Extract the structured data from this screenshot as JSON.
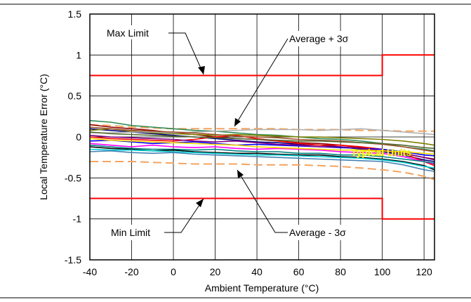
{
  "chart_data": {
    "type": "line",
    "title": "",
    "xlabel": "Ambient Temperature (°C)",
    "ylabel": "Local Temperature Error (°C)",
    "xlim": [
      -40,
      125
    ],
    "ylim": [
      -1.5,
      1.5
    ],
    "x_ticks": [
      {
        "value": -40,
        "label": "-40"
      },
      {
        "value": -20,
        "label": "-20"
      },
      {
        "value": 0,
        "label": "0"
      },
      {
        "value": 20,
        "label": "20"
      },
      {
        "value": 40,
        "label": "40"
      },
      {
        "value": 60,
        "label": "60"
      },
      {
        "value": 80,
        "label": "80"
      },
      {
        "value": 100,
        "label": "100"
      },
      {
        "value": 120,
        "label": "120"
      }
    ],
    "y_ticks": [
      {
        "value": 1.5,
        "label": "1.5"
      },
      {
        "value": 1,
        "label": "1"
      },
      {
        "value": 0.5,
        "label": "0.5"
      },
      {
        "value": 0,
        "label": "0"
      },
      {
        "value": -0.5,
        "label": "-0.5"
      },
      {
        "value": -1,
        "label": "-1"
      },
      {
        "value": -1.5,
        "label": "-1.5"
      }
    ],
    "grid": true,
    "limit_lines": [
      {
        "name": "Max Limit",
        "color": "#ff0000",
        "x": [
          -40,
          100,
          100,
          125
        ],
        "y": [
          0.75,
          0.75,
          1.0,
          1.0
        ]
      },
      {
        "name": "Min Limit",
        "color": "#ff0000",
        "x": [
          -40,
          100,
          100,
          125
        ],
        "y": [
          -0.75,
          -0.75,
          -1.0,
          -1.0
        ]
      }
    ],
    "bound_lines": [
      {
        "name": "Average + 3σ",
        "color": "#f4a460",
        "dashed": true,
        "x": [
          -40,
          -30,
          -20,
          -10,
          0,
          10,
          20,
          30,
          40,
          50,
          60,
          70,
          80,
          90,
          100,
          110,
          120,
          125
        ],
        "y": [
          0.15,
          0.14,
          0.12,
          0.11,
          0.1,
          0.1,
          0.1,
          0.1,
          0.1,
          0.1,
          0.09,
          0.09,
          0.09,
          0.08,
          0.08,
          0.07,
          0.07,
          0.07
        ]
      },
      {
        "name": "Average - 3σ",
        "color": "#f4a460",
        "dashed": true,
        "x": [
          -40,
          -30,
          -20,
          -10,
          0,
          10,
          20,
          30,
          40,
          50,
          60,
          70,
          80,
          90,
          100,
          110,
          120,
          125
        ],
        "y": [
          -0.3,
          -0.3,
          -0.3,
          -0.31,
          -0.32,
          -0.33,
          -0.33,
          -0.33,
          -0.34,
          -0.34,
          -0.34,
          -0.35,
          -0.36,
          -0.38,
          -0.4,
          -0.43,
          -0.48,
          -0.52
        ]
      }
    ],
    "series_x": [
      -40,
      -30,
      -20,
      -10,
      0,
      10,
      20,
      30,
      40,
      50,
      60,
      70,
      80,
      90,
      100,
      110,
      120,
      125
    ],
    "series": [
      {
        "color": "#2e8b57",
        "values": [
          0.2,
          0.18,
          0.14,
          0.12,
          0.1,
          0.08,
          0.07,
          0.05,
          0.03,
          0.02,
          0.0,
          -0.02,
          -0.03,
          -0.05,
          -0.08,
          -0.12,
          -0.15,
          -0.17
        ]
      },
      {
        "color": "#8b0000",
        "values": [
          0.15,
          0.12,
          0.1,
          0.08,
          0.05,
          0.03,
          0.0,
          -0.02,
          -0.03,
          -0.05,
          -0.07,
          -0.08,
          -0.1,
          -0.13,
          -0.15,
          -0.2,
          -0.25,
          -0.27
        ]
      },
      {
        "color": "#000080",
        "values": [
          0.1,
          0.08,
          0.06,
          0.04,
          0.02,
          0.0,
          -0.02,
          -0.04,
          -0.06,
          -0.07,
          -0.09,
          -0.1,
          -0.12,
          -0.15,
          -0.18,
          -0.22,
          -0.28,
          -0.3
        ]
      },
      {
        "color": "#808000",
        "values": [
          0.08,
          0.1,
          0.07,
          0.05,
          0.04,
          0.03,
          0.02,
          0.03,
          0.02,
          0.01,
          0.0,
          0.0,
          -0.01,
          -0.02,
          -0.03,
          -0.05,
          -0.08,
          -0.1
        ]
      },
      {
        "color": "#b0b0b0",
        "values": [
          0.05,
          0.05,
          0.06,
          0.06,
          0.05,
          0.06,
          0.07,
          0.08,
          0.09,
          0.09,
          0.09,
          0.08,
          0.09,
          0.1,
          0.08,
          0.06,
          0.04,
          0.03
        ]
      },
      {
        "color": "#ff0000",
        "values": [
          0.0,
          -0.02,
          -0.03,
          -0.04,
          -0.05,
          -0.03,
          0.0,
          0.02,
          -0.02,
          -0.05,
          -0.08,
          -0.1,
          -0.1,
          -0.12,
          -0.15,
          -0.2,
          -0.3,
          -0.35
        ]
      },
      {
        "color": "#0000ff",
        "values": [
          -0.05,
          -0.04,
          -0.06,
          -0.08,
          -0.07,
          -0.06,
          -0.08,
          -0.1,
          -0.09,
          -0.1,
          -0.11,
          -0.12,
          -0.13,
          -0.14,
          -0.15,
          -0.18,
          -0.22,
          -0.23
        ]
      },
      {
        "color": "#ff00ff",
        "values": [
          -0.08,
          -0.1,
          -0.12,
          -0.1,
          -0.12,
          -0.13,
          -0.12,
          -0.14,
          -0.15,
          -0.14,
          -0.15,
          -0.16,
          -0.18,
          -0.19,
          -0.2,
          -0.24,
          -0.3,
          -0.33
        ]
      },
      {
        "color": "#008080",
        "values": [
          -0.1,
          -0.12,
          -0.14,
          -0.15,
          -0.15,
          -0.16,
          -0.15,
          -0.17,
          -0.18,
          -0.18,
          -0.2,
          -0.2,
          -0.22,
          -0.22,
          -0.24,
          -0.27,
          -0.3,
          -0.32
        ]
      },
      {
        "color": "#800080",
        "values": [
          0.02,
          0.0,
          -0.01,
          -0.02,
          -0.03,
          -0.05,
          -0.06,
          -0.05,
          -0.07,
          -0.09,
          -0.1,
          -0.12,
          -0.12,
          -0.14,
          -0.17,
          -0.2,
          -0.25,
          -0.28
        ]
      },
      {
        "color": "#000000",
        "values": [
          -0.12,
          -0.14,
          -0.15,
          -0.17,
          -0.16,
          -0.18,
          -0.19,
          -0.2,
          -0.2,
          -0.21,
          -0.22,
          -0.22,
          -0.24,
          -0.25,
          -0.27,
          -0.3,
          -0.35,
          -0.4
        ]
      },
      {
        "color": "#a0522d",
        "values": [
          0.12,
          0.1,
          0.08,
          0.07,
          0.06,
          0.05,
          0.03,
          0.01,
          0.0,
          -0.01,
          -0.03,
          -0.04,
          -0.05,
          -0.07,
          -0.09,
          -0.12,
          -0.16,
          -0.18
        ]
      },
      {
        "color": "#ffd700",
        "values": [
          -0.02,
          -0.04,
          -0.05,
          -0.06,
          -0.07,
          -0.08,
          -0.09,
          -0.1,
          -0.12,
          -0.13,
          -0.14,
          -0.15,
          -0.16,
          -0.16,
          -0.17,
          -0.18,
          -0.2,
          -0.21
        ]
      },
      {
        "color": "#00ced1",
        "values": [
          -0.15,
          -0.16,
          -0.16,
          -0.17,
          -0.18,
          -0.19,
          -0.2,
          -0.21,
          -0.22,
          -0.22,
          -0.23,
          -0.24,
          -0.25,
          -0.26,
          -0.28,
          -0.31,
          -0.36,
          -0.38
        ]
      },
      {
        "color": "#556b2f",
        "values": [
          0.06,
          0.04,
          0.03,
          0.02,
          0.01,
          0.0,
          -0.01,
          -0.02,
          -0.03,
          -0.04,
          -0.05,
          -0.05,
          -0.06,
          -0.07,
          -0.08,
          -0.1,
          -0.13,
          -0.14
        ]
      },
      {
        "color": "#4682b4",
        "values": [
          -0.18,
          -0.17,
          -0.19,
          -0.2,
          -0.19,
          -0.21,
          -0.22,
          -0.23,
          -0.24,
          -0.25,
          -0.26,
          -0.27,
          -0.28,
          -0.29,
          -0.3,
          -0.34,
          -0.4,
          -0.42
        ]
      }
    ],
    "annotations": [
      {
        "text": "Max Limit"
      },
      {
        "text": "Average + 3σ"
      },
      {
        "text": "Average - 3σ"
      },
      {
        "text": "Min Limit"
      },
      {
        "text": "Typical Units"
      }
    ]
  }
}
